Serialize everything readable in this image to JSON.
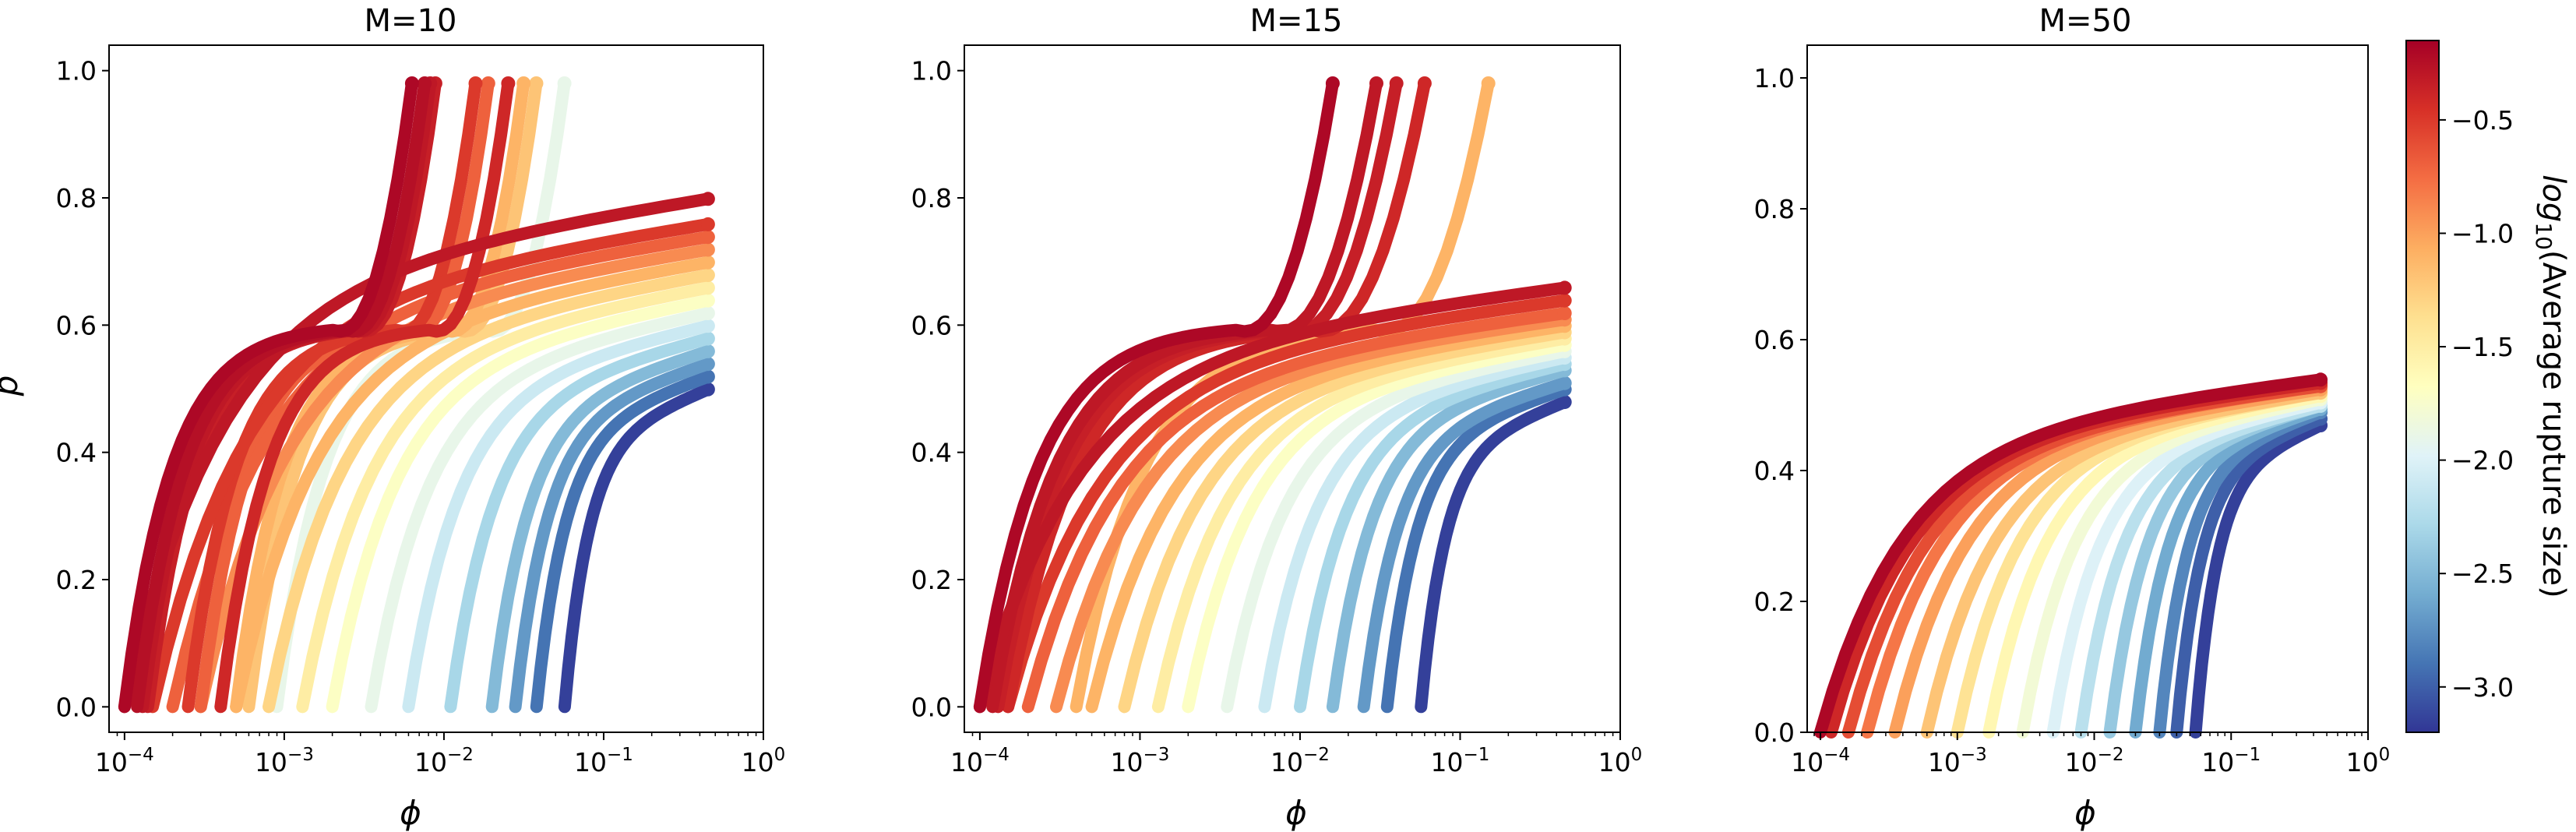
{
  "chart_data": [
    {
      "type": "scatter",
      "title": "M=10",
      "xlabel": "ϕ",
      "ylabel": "p",
      "xscale": "log",
      "xlim": [
        8e-05,
        1
      ],
      "ylim": [
        -0.04,
        1.04
      ],
      "xtick_labels": [
        "10^-4",
        "10^-3",
        "10^-2",
        "10^-1",
        "10^0"
      ],
      "ytick_values": [
        0.0,
        0.2,
        0.4,
        0.6,
        0.8,
        1.0
      ],
      "ytick_labels": [
        "0.0",
        "0.2",
        "0.4",
        "0.6",
        "0.8",
        "1.0"
      ],
      "grid": false,
      "series_encoding": "each curve p(ϕ) colored by log10(Average rupture size)",
      "series": [
        {
          "color_value": -0.2,
          "phi_start": 0.0001,
          "p_end": 0.98,
          "shape": "tail"
        },
        {
          "color_value": -0.25,
          "phi_start": 0.00012,
          "p_end": 0.98,
          "shape": "tail"
        },
        {
          "color_value": -0.3,
          "phi_start": 0.00013,
          "p_end": 0.98,
          "shape": "tail"
        },
        {
          "color_value": -0.35,
          "phi_start": 0.00014,
          "p_end": 0.98,
          "shape": "tail"
        },
        {
          "color_value": -1.1,
          "phi_start": 0.0005,
          "p_end": 0.98,
          "shape": "tail"
        },
        {
          "color_value": -0.5,
          "phi_start": 0.00025,
          "p_end": 0.98,
          "shape": "tail"
        },
        {
          "color_value": -0.7,
          "phi_start": 0.0003,
          "p_end": 0.98,
          "shape": "tail"
        },
        {
          "color_value": -1.2,
          "phi_start": 0.0006,
          "p_end": 0.98,
          "shape": "tail"
        },
        {
          "color_value": -0.4,
          "phi_start": 0.0004,
          "p_end": 0.98,
          "shape": "tail"
        },
        {
          "color_value": -1.9,
          "phi_start": 0.0009,
          "p_end": 0.98,
          "shape": "tail"
        },
        {
          "color_value": -0.3,
          "phi_start": 0.0001,
          "p_end": 0.8,
          "shape": "flat"
        },
        {
          "color_value": -0.5,
          "phi_start": 0.00015,
          "p_end": 0.76,
          "shape": "flat"
        },
        {
          "color_value": -0.7,
          "phi_start": 0.0002,
          "p_end": 0.74,
          "shape": "flat"
        },
        {
          "color_value": -0.9,
          "phi_start": 0.0003,
          "p_end": 0.72,
          "shape": "flat"
        },
        {
          "color_value": -1.1,
          "phi_start": 0.0005,
          "p_end": 0.7,
          "shape": "flat"
        },
        {
          "color_value": -1.3,
          "phi_start": 0.0008,
          "p_end": 0.68,
          "shape": "flat"
        },
        {
          "color_value": -1.5,
          "phi_start": 0.0013,
          "p_end": 0.66,
          "shape": "flat"
        },
        {
          "color_value": -1.7,
          "phi_start": 0.002,
          "p_end": 0.64,
          "shape": "flat"
        },
        {
          "color_value": -1.9,
          "phi_start": 0.0035,
          "p_end": 0.62,
          "shape": "flat"
        },
        {
          "color_value": -2.1,
          "phi_start": 0.006,
          "p_end": 0.6,
          "shape": "flat"
        },
        {
          "color_value": -2.3,
          "phi_start": 0.011,
          "p_end": 0.58,
          "shape": "flat"
        },
        {
          "color_value": -2.5,
          "phi_start": 0.02,
          "p_end": 0.56,
          "shape": "flat"
        },
        {
          "color_value": -2.7,
          "phi_start": 0.028,
          "p_end": 0.54,
          "shape": "flat"
        },
        {
          "color_value": -2.9,
          "phi_start": 0.038,
          "p_end": 0.52,
          "shape": "flat"
        },
        {
          "color_value": -3.15,
          "phi_start": 0.057,
          "p_end": 0.5,
          "shape": "flat"
        }
      ]
    },
    {
      "type": "scatter",
      "title": "M=15",
      "xlabel": "ϕ",
      "ylabel": "",
      "xscale": "log",
      "xlim": [
        8e-05,
        1
      ],
      "ylim": [
        -0.04,
        1.04
      ],
      "xtick_labels": [
        "10^-4",
        "10^-3",
        "10^-2",
        "10^-1",
        "10^0"
      ],
      "ytick_values": [
        0.0,
        0.2,
        0.4,
        0.6,
        0.8,
        1.0
      ],
      "ytick_labels": [
        "0.0",
        "0.2",
        "0.4",
        "0.6",
        "0.8",
        "1.0"
      ],
      "grid": false,
      "series_encoding": "each curve p(ϕ) colored by log10(Average rupture size)",
      "series": [
        {
          "color_value": -0.2,
          "phi_start": 0.0001,
          "p_end": 0.98,
          "shape": "tail",
          "phi_end": 0.016
        },
        {
          "color_value": -0.3,
          "phi_start": 0.00012,
          "p_end": 0.98,
          "shape": "tail",
          "phi_end": 0.03
        },
        {
          "color_value": -0.35,
          "phi_start": 0.00013,
          "p_end": 0.98,
          "shape": "tail",
          "phi_end": 0.04
        },
        {
          "color_value": -0.4,
          "phi_start": 0.00015,
          "p_end": 0.98,
          "shape": "tail",
          "phi_end": 0.06
        },
        {
          "color_value": -1.1,
          "phi_start": 0.0004,
          "p_end": 0.98,
          "shape": "tail",
          "phi_end": 0.15
        },
        {
          "color_value": -0.3,
          "phi_start": 0.0001,
          "p_end": 0.66,
          "shape": "flat"
        },
        {
          "color_value": -0.5,
          "phi_start": 0.00015,
          "p_end": 0.64,
          "shape": "flat"
        },
        {
          "color_value": -0.7,
          "phi_start": 0.0002,
          "p_end": 0.62,
          "shape": "flat"
        },
        {
          "color_value": -0.9,
          "phi_start": 0.0003,
          "p_end": 0.61,
          "shape": "flat"
        },
        {
          "color_value": -1.1,
          "phi_start": 0.0005,
          "p_end": 0.6,
          "shape": "flat"
        },
        {
          "color_value": -1.3,
          "phi_start": 0.0008,
          "p_end": 0.59,
          "shape": "flat"
        },
        {
          "color_value": -1.5,
          "phi_start": 0.0013,
          "p_end": 0.58,
          "shape": "flat"
        },
        {
          "color_value": -1.7,
          "phi_start": 0.002,
          "p_end": 0.57,
          "shape": "flat"
        },
        {
          "color_value": -1.9,
          "phi_start": 0.0035,
          "p_end": 0.56,
          "shape": "flat"
        },
        {
          "color_value": -2.1,
          "phi_start": 0.006,
          "p_end": 0.55,
          "shape": "flat"
        },
        {
          "color_value": -2.3,
          "phi_start": 0.01,
          "p_end": 0.54,
          "shape": "flat"
        },
        {
          "color_value": -2.5,
          "phi_start": 0.016,
          "p_end": 0.53,
          "shape": "flat"
        },
        {
          "color_value": -2.7,
          "phi_start": 0.025,
          "p_end": 0.51,
          "shape": "flat"
        },
        {
          "color_value": -2.9,
          "phi_start": 0.035,
          "p_end": 0.5,
          "shape": "flat"
        },
        {
          "color_value": -3.15,
          "phi_start": 0.057,
          "p_end": 0.48,
          "shape": "flat"
        }
      ]
    },
    {
      "type": "scatter",
      "title": "M=50",
      "xlabel": "ϕ",
      "ylabel": "",
      "xscale": "log",
      "xlim": [
        8e-05,
        1
      ],
      "ylim": [
        0.0,
        1.05
      ],
      "xtick_labels": [
        "10^-4",
        "10^-3",
        "10^-2",
        "10^-1",
        "10^0"
      ],
      "ytick_values": [
        0.0,
        0.2,
        0.4,
        0.6,
        0.8,
        1.0
      ],
      "ytick_labels": [
        "0.0",
        "0.2",
        "0.4",
        "0.6",
        "0.8",
        "1.0"
      ],
      "grid": false,
      "series_encoding": "each curve p(ϕ) colored by log10(Average rupture size)",
      "series": [
        {
          "color_value": -0.2,
          "phi_start": 0.0001,
          "p_end": 0.54,
          "shape": "flat"
        },
        {
          "color_value": -0.4,
          "phi_start": 0.00012,
          "p_end": 0.535,
          "shape": "flat"
        },
        {
          "color_value": -0.6,
          "phi_start": 0.00016,
          "p_end": 0.53,
          "shape": "flat"
        },
        {
          "color_value": -0.8,
          "phi_start": 0.00022,
          "p_end": 0.53,
          "shape": "flat"
        },
        {
          "color_value": -1.0,
          "phi_start": 0.00035,
          "p_end": 0.525,
          "shape": "flat"
        },
        {
          "color_value": -1.2,
          "phi_start": 0.0006,
          "p_end": 0.52,
          "shape": "flat"
        },
        {
          "color_value": -1.4,
          "phi_start": 0.001,
          "p_end": 0.52,
          "shape": "flat"
        },
        {
          "color_value": -1.6,
          "phi_start": 0.0017,
          "p_end": 0.515,
          "shape": "flat"
        },
        {
          "color_value": -1.8,
          "phi_start": 0.003,
          "p_end": 0.51,
          "shape": "flat"
        },
        {
          "color_value": -2.0,
          "phi_start": 0.005,
          "p_end": 0.505,
          "shape": "flat"
        },
        {
          "color_value": -2.2,
          "phi_start": 0.008,
          "p_end": 0.5,
          "shape": "flat"
        },
        {
          "color_value": -2.4,
          "phi_start": 0.013,
          "p_end": 0.5,
          "shape": "flat"
        },
        {
          "color_value": -2.6,
          "phi_start": 0.02,
          "p_end": 0.495,
          "shape": "flat"
        },
        {
          "color_value": -2.8,
          "phi_start": 0.03,
          "p_end": 0.49,
          "shape": "flat"
        },
        {
          "color_value": -3.0,
          "phi_start": 0.04,
          "p_end": 0.48,
          "shape": "flat"
        },
        {
          "color_value": -3.15,
          "phi_start": 0.055,
          "p_end": 0.47,
          "shape": "flat"
        }
      ]
    }
  ],
  "colorbar": {
    "label": "log10(Average rupture size)",
    "label_italic_part": "log",
    "label_subscript": "10",
    "label_rest": "(Average rupture size)",
    "range": [
      -3.2,
      -0.15
    ],
    "ticks": [
      -0.5,
      -1.0,
      -1.5,
      -2.0,
      -2.5,
      -3.0
    ],
    "tick_labels": [
      "−0.5",
      "−1.0",
      "−1.5",
      "−2.0",
      "−2.5",
      "−3.0"
    ],
    "colormap": "RdYlBu",
    "stops": [
      "#313695",
      "#4575b4",
      "#74add1",
      "#abd9e9",
      "#e0f3f8",
      "#ffffbf",
      "#fee090",
      "#fdae61",
      "#f46d43",
      "#d73027",
      "#a50026"
    ]
  },
  "x_tick_base": "10",
  "x_tick_exponents": [
    "−4",
    "−3",
    "−2",
    "−1",
    "0"
  ]
}
